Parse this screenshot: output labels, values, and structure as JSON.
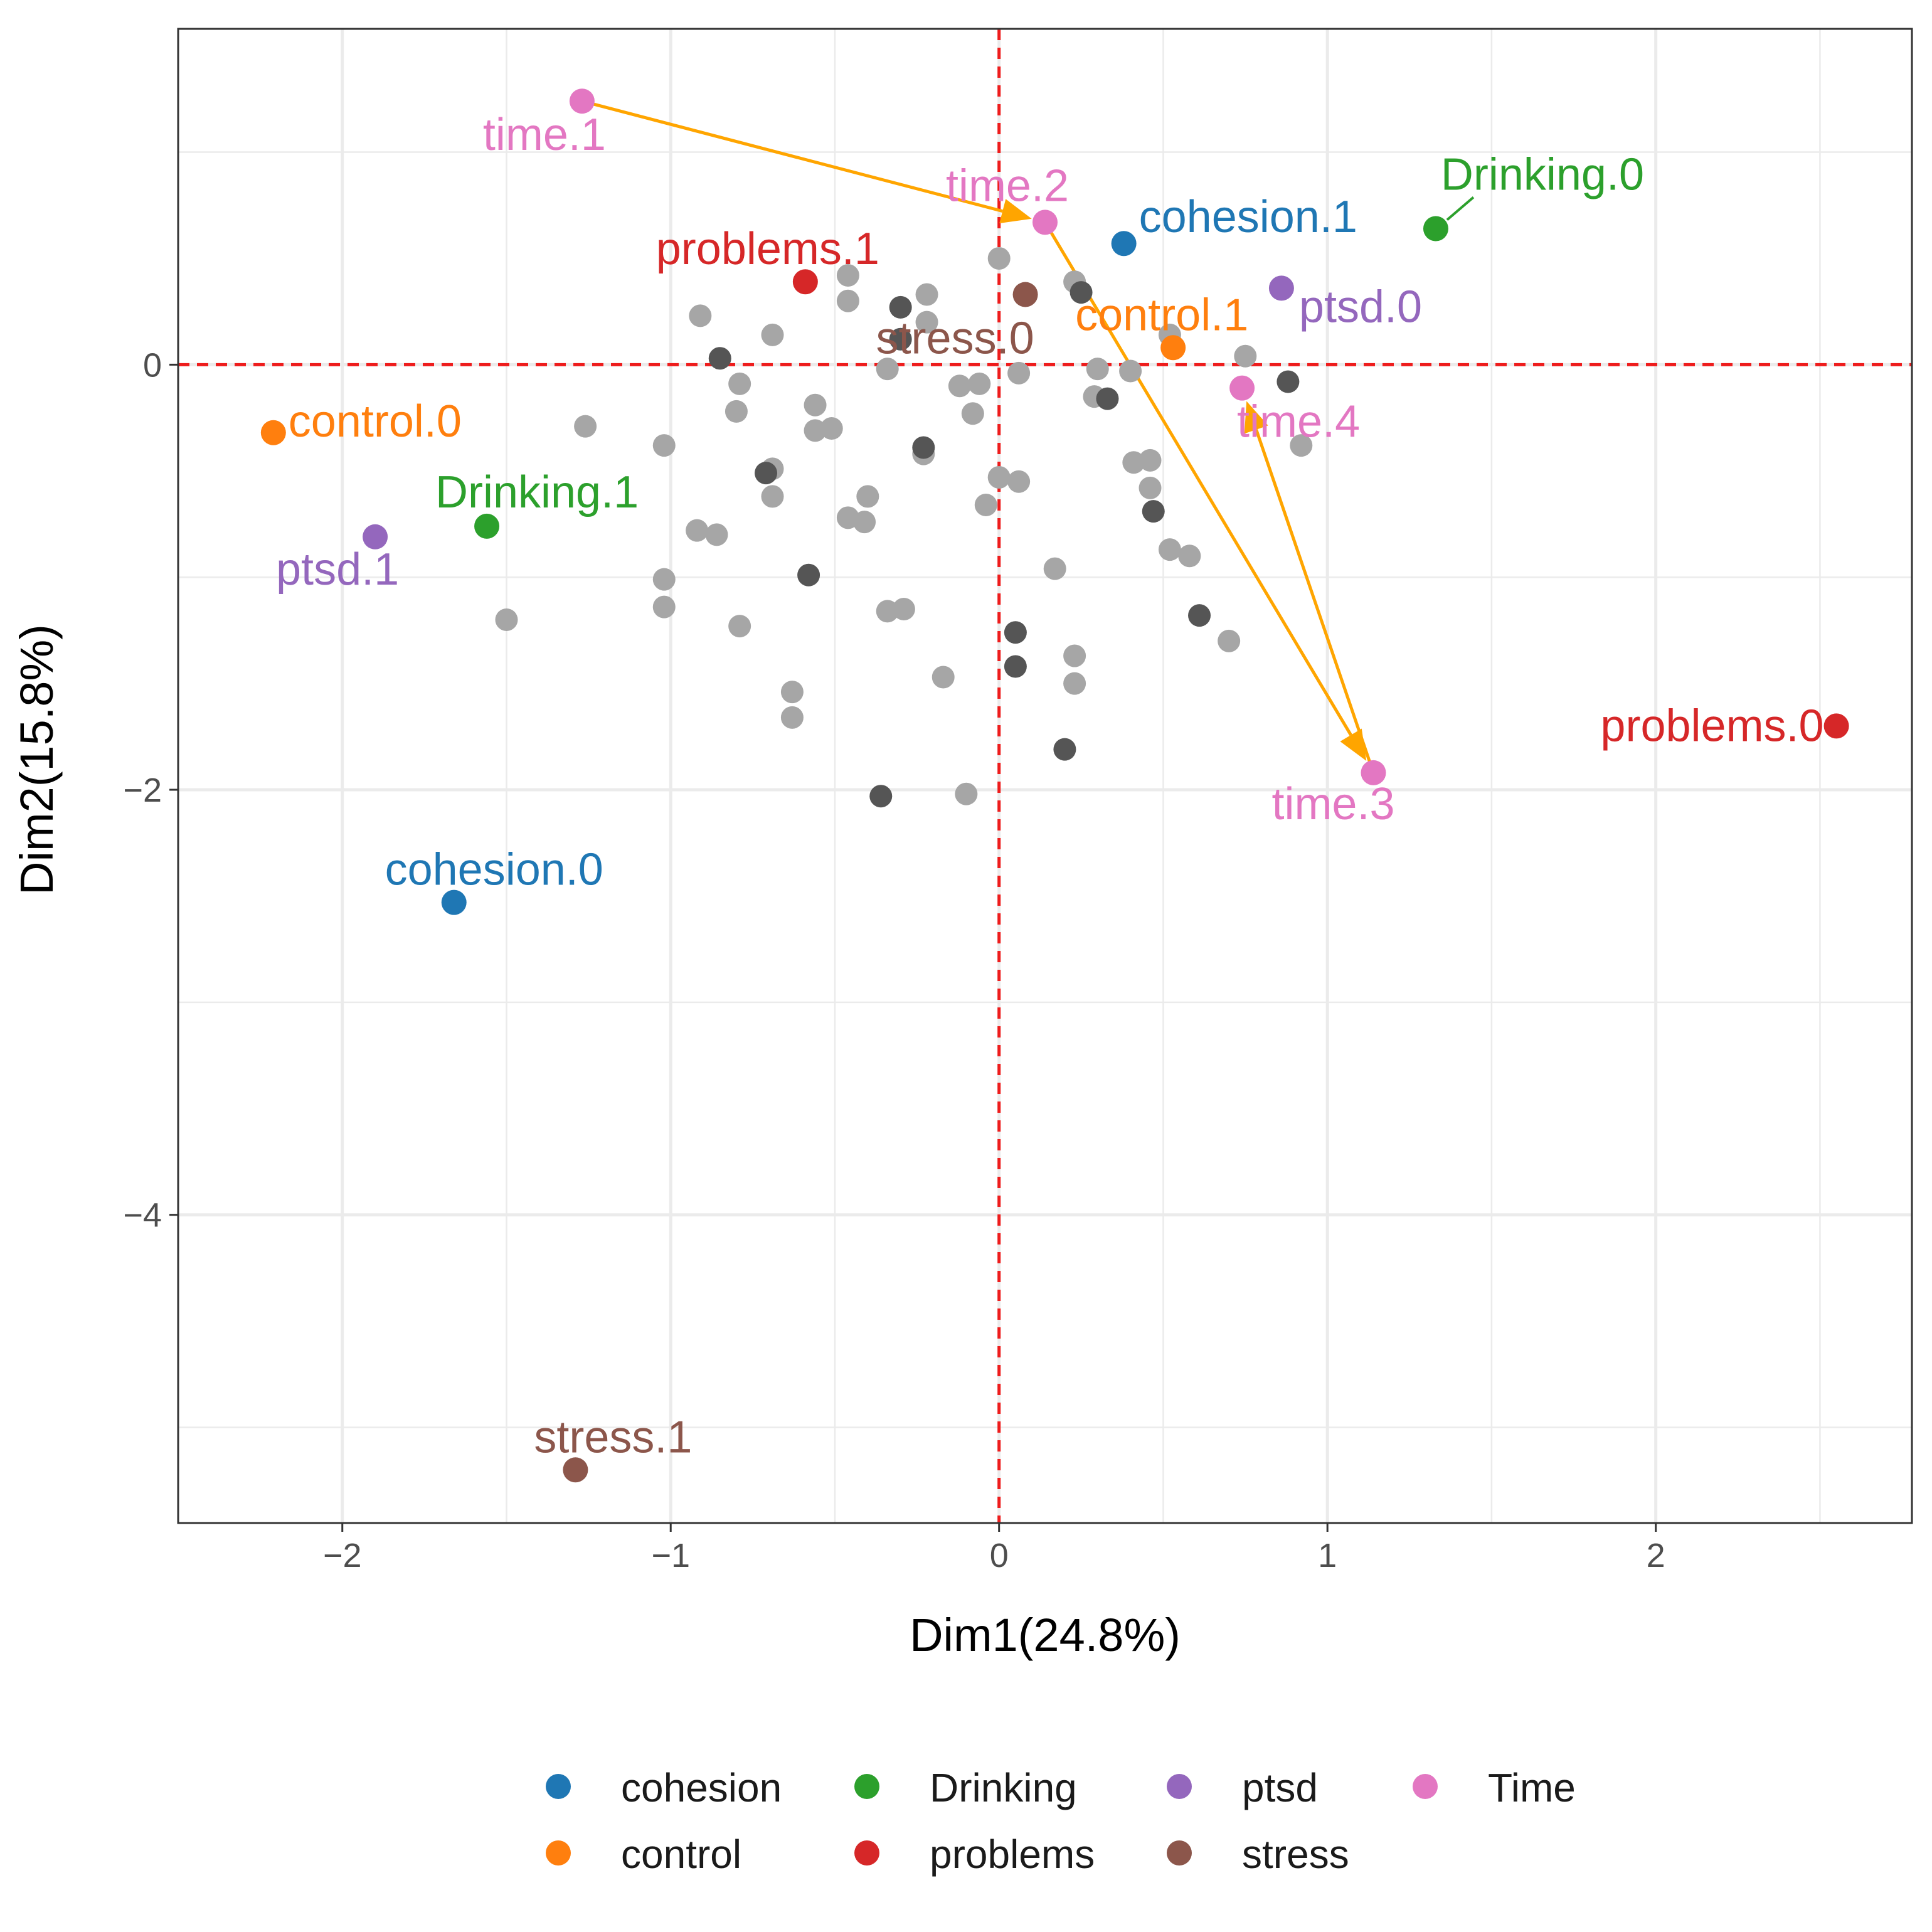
{
  "chart_data": {
    "type": "scatter",
    "xlabel": "Dim1(24.8%)",
    "ylabel": "Dim2(15.8%)",
    "xlim": [
      -2.5,
      2.78
    ],
    "ylim": [
      -5.45,
      1.58
    ],
    "x_ticks": [
      -2,
      -1,
      0,
      1,
      2
    ],
    "y_ticks": [
      0,
      -2,
      -4
    ],
    "x_tick_labels": [
      "−2",
      "−1",
      "0",
      "1",
      "2"
    ],
    "y_tick_labels": [
      "0",
      "−2",
      "−4"
    ],
    "grid": true,
    "reference_lines": {
      "x": 0,
      "y": 0,
      "color": "#ee1c1c",
      "style": "dashed"
    },
    "legend_position": "bottom",
    "colors": {
      "cohesion": "#1f77b4",
      "control": "#ff7f0e",
      "Drinking": "#2ca02c",
      "problems": "#d62728",
      "ptsd": "#9467bd",
      "stress": "#8c564b",
      "Time": "#e377c2",
      "individual_light": "#a6a6a6",
      "individual_dark": "#555555",
      "trajectory": "#ffa500"
    },
    "legend": [
      {
        "name": "cohesion",
        "color": "#1f77b4"
      },
      {
        "name": "control",
        "color": "#ff7f0e"
      },
      {
        "name": "Drinking",
        "color": "#2ca02c"
      },
      {
        "name": "problems",
        "color": "#d62728"
      },
      {
        "name": "ptsd",
        "color": "#9467bd"
      },
      {
        "name": "stress",
        "color": "#8c564b"
      },
      {
        "name": "Time",
        "color": "#e377c2"
      }
    ],
    "categories": [
      {
        "label": "time.1",
        "group": "Time",
        "x": -1.27,
        "y": 1.24
      },
      {
        "label": "time.2",
        "group": "Time",
        "x": 0.14,
        "y": 0.67
      },
      {
        "label": "time.3",
        "group": "Time",
        "x": 1.14,
        "y": -1.92
      },
      {
        "label": "time.4",
        "group": "Time",
        "x": 0.74,
        "y": -0.11
      },
      {
        "label": "cohesion.1",
        "group": "cohesion",
        "x": 0.38,
        "y": 0.57
      },
      {
        "label": "cohesion.0",
        "group": "cohesion",
        "x": -1.66,
        "y": -2.53
      },
      {
        "label": "Drinking.0",
        "group": "Drinking",
        "x": 1.33,
        "y": 0.64
      },
      {
        "label": "Drinking.1",
        "group": "Drinking",
        "x": -1.56,
        "y": -0.76
      },
      {
        "label": "problems.1",
        "group": "problems",
        "x": -0.59,
        "y": 0.39
      },
      {
        "label": "problems.0",
        "group": "problems",
        "x": 2.55,
        "y": -1.7
      },
      {
        "label": "control.1",
        "group": "control",
        "x": 0.53,
        "y": 0.08
      },
      {
        "label": "control.0",
        "group": "control",
        "x": -2.21,
        "y": -0.32
      },
      {
        "label": "ptsd.0",
        "group": "ptsd",
        "x": 0.86,
        "y": 0.36
      },
      {
        "label": "ptsd.1",
        "group": "ptsd",
        "x": -1.9,
        "y": -0.81
      },
      {
        "label": "stress.0",
        "group": "stress",
        "x": 0.08,
        "y": 0.33
      },
      {
        "label": "stress.1",
        "group": "stress",
        "x": -1.29,
        "y": -5.2
      }
    ],
    "trajectory": [
      "time.1",
      "time.2",
      "time.3",
      "time.4"
    ],
    "individuals_light": [
      [
        0.0,
        0.5
      ],
      [
        -0.46,
        0.42
      ],
      [
        -0.46,
        0.3
      ],
      [
        -0.91,
        0.23
      ],
      [
        -0.22,
        0.33
      ],
      [
        -0.22,
        0.2
      ],
      [
        -0.69,
        0.14
      ],
      [
        0.23,
        0.39
      ],
      [
        0.52,
        0.14
      ],
      [
        0.75,
        0.04
      ],
      [
        -0.34,
        -0.02
      ],
      [
        -0.79,
        -0.09
      ],
      [
        -0.8,
        -0.22
      ],
      [
        -0.56,
        -0.19
      ],
      [
        -0.56,
        -0.31
      ],
      [
        -0.51,
        -0.3
      ],
      [
        -1.26,
        -0.29
      ],
      [
        -1.02,
        -0.38
      ],
      [
        -0.06,
        -0.09
      ],
      [
        -0.12,
        -0.1
      ],
      [
        -0.08,
        -0.23
      ],
      [
        0.06,
        -0.04
      ],
      [
        0.3,
        -0.02
      ],
      [
        0.4,
        -0.03
      ],
      [
        0.29,
        -0.15
      ],
      [
        -0.23,
        -0.42
      ],
      [
        -0.69,
        -0.49
      ],
      [
        -0.69,
        -0.62
      ],
      [
        0.0,
        -0.53
      ],
      [
        0.06,
        -0.55
      ],
      [
        -0.4,
        -0.62
      ],
      [
        -0.46,
        -0.72
      ],
      [
        -0.41,
        -0.74
      ],
      [
        -0.04,
        -0.66
      ],
      [
        0.41,
        -0.46
      ],
      [
        0.46,
        -0.45
      ],
      [
        0.92,
        -0.38
      ],
      [
        0.46,
        -0.58
      ],
      [
        -0.92,
        -0.78
      ],
      [
        -0.86,
        -0.8
      ],
      [
        -1.02,
        -1.01
      ],
      [
        -1.02,
        -1.14
      ],
      [
        -0.34,
        -1.16
      ],
      [
        -0.29,
        -1.15
      ],
      [
        -0.79,
        -1.23
      ],
      [
        -1.5,
        -1.2
      ],
      [
        0.52,
        -0.87
      ],
      [
        0.58,
        -0.9
      ],
      [
        0.17,
        -0.96
      ],
      [
        0.7,
        -1.3
      ],
      [
        0.23,
        -1.37
      ],
      [
        0.23,
        -1.5
      ],
      [
        -0.17,
        -1.47
      ],
      [
        -0.63,
        -1.54
      ],
      [
        -0.63,
        -1.66
      ],
      [
        -0.1,
        -2.02
      ]
    ],
    "individuals_dark": [
      [
        -0.3,
        0.27
      ],
      [
        -0.3,
        0.12
      ],
      [
        -0.85,
        0.03
      ],
      [
        0.25,
        0.34
      ],
      [
        -0.23,
        -0.39
      ],
      [
        -0.71,
        -0.51
      ],
      [
        0.33,
        -0.16
      ],
      [
        0.88,
        -0.08
      ],
      [
        0.47,
        -0.69
      ],
      [
        -0.58,
        -0.99
      ],
      [
        0.61,
        -1.18
      ],
      [
        0.05,
        -1.26
      ],
      [
        0.05,
        -1.42
      ],
      [
        0.2,
        -1.81
      ],
      [
        -0.36,
        -2.03
      ]
    ]
  }
}
